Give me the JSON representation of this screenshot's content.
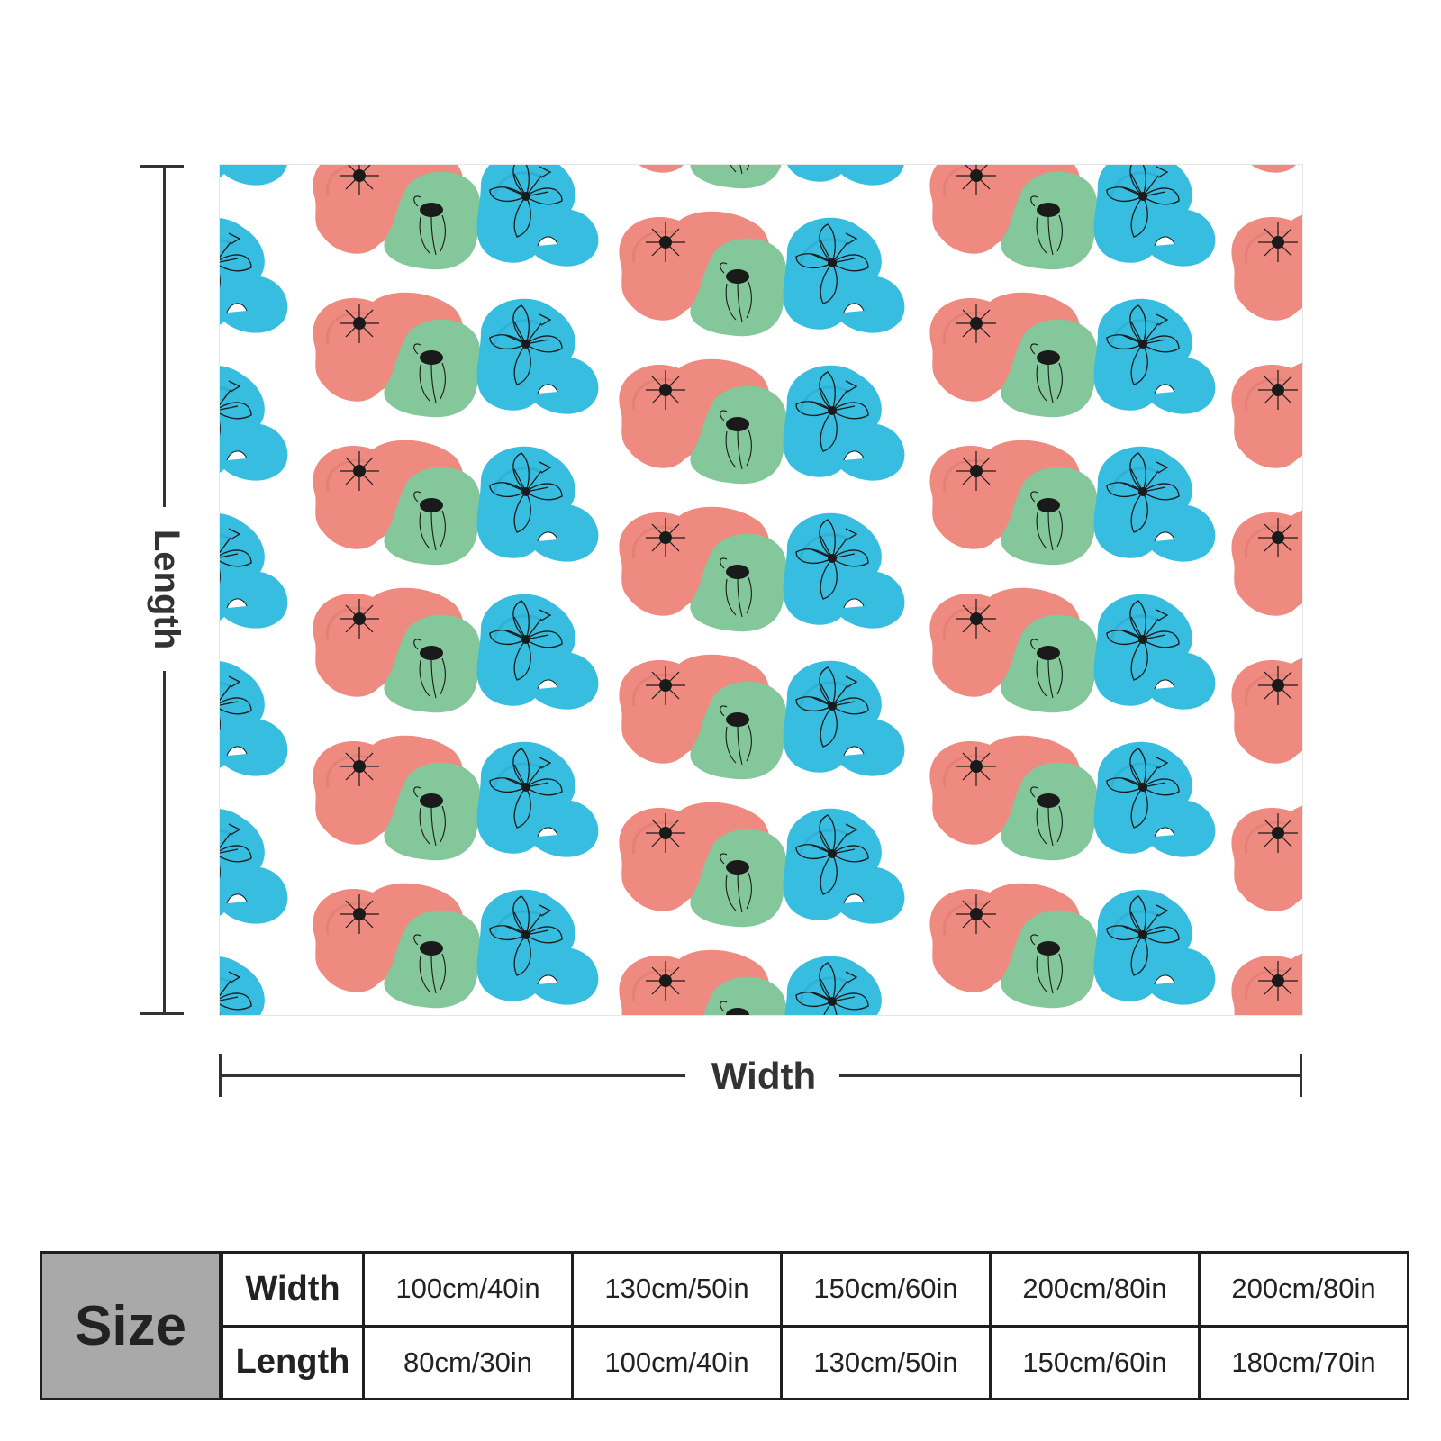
{
  "colors": {
    "coral": "#ee8a7f",
    "green": "#84c79a",
    "blue": "#36bde0",
    "ink": "#1a1a1a",
    "size_cell": "#a9a9a9"
  },
  "pattern_icons": [
    "daisy-flower-icon",
    "poppy-flower-icon",
    "lily-flower-icon"
  ],
  "labels": {
    "length": "Length",
    "width": "Width"
  },
  "size_table": {
    "header": "Size",
    "width_label": "Width",
    "length_label": "Length",
    "widths": [
      "100cm/40in",
      "130cm/50in",
      "150cm/60in",
      "200cm/80in",
      "200cm/80in"
    ],
    "lengths": [
      "80cm/30in",
      "100cm/40in",
      "130cm/50in",
      "150cm/60in",
      "180cm/70in"
    ]
  }
}
